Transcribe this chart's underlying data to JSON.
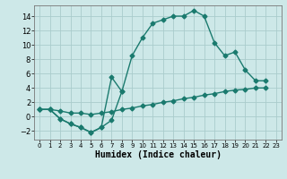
{
  "xlabel": "Humidex (Indice chaleur)",
  "background_color": "#cde8e8",
  "grid_color": "#aacccc",
  "line_color": "#1a7a6e",
  "xlim": [
    -0.5,
    23.5
  ],
  "ylim": [
    -3.2,
    15.5
  ],
  "xticks": [
    0,
    1,
    2,
    3,
    4,
    5,
    6,
    7,
    8,
    9,
    10,
    11,
    12,
    13,
    14,
    15,
    16,
    17,
    18,
    19,
    20,
    21,
    22,
    23
  ],
  "yticks": [
    -2,
    0,
    2,
    4,
    6,
    8,
    10,
    12,
    14
  ],
  "line1_x": [
    0,
    1,
    2,
    3,
    4,
    5,
    6,
    7,
    8,
    9,
    10,
    11,
    12,
    13,
    14,
    15,
    16,
    17,
    18,
    19,
    20,
    21,
    22
  ],
  "line1_y": [
    1.0,
    1.0,
    -0.3,
    -1.0,
    -1.5,
    -2.2,
    -1.5,
    -0.5,
    3.5,
    8.5,
    11.0,
    13.0,
    13.5,
    14.0,
    14.0,
    14.8,
    14.0,
    10.3,
    8.5,
    9.0,
    6.5,
    5.0,
    5.0
  ],
  "line2_x": [
    0,
    1,
    2,
    3,
    4,
    5,
    6,
    7,
    8
  ],
  "line2_y": [
    1.0,
    1.0,
    -0.3,
    -1.0,
    -1.5,
    -2.2,
    -1.5,
    5.5,
    3.5
  ],
  "line3_x": [
    0,
    1,
    2,
    3,
    4,
    5,
    6,
    7,
    8,
    9,
    10,
    11,
    12,
    13,
    14,
    15,
    16,
    17,
    18,
    19,
    20,
    21,
    22
  ],
  "line3_y": [
    1.0,
    1.0,
    0.8,
    0.5,
    0.5,
    0.3,
    0.5,
    0.7,
    1.0,
    1.2,
    1.5,
    1.7,
    2.0,
    2.2,
    2.5,
    2.7,
    3.0,
    3.2,
    3.5,
    3.7,
    3.8,
    4.0,
    4.0
  ]
}
